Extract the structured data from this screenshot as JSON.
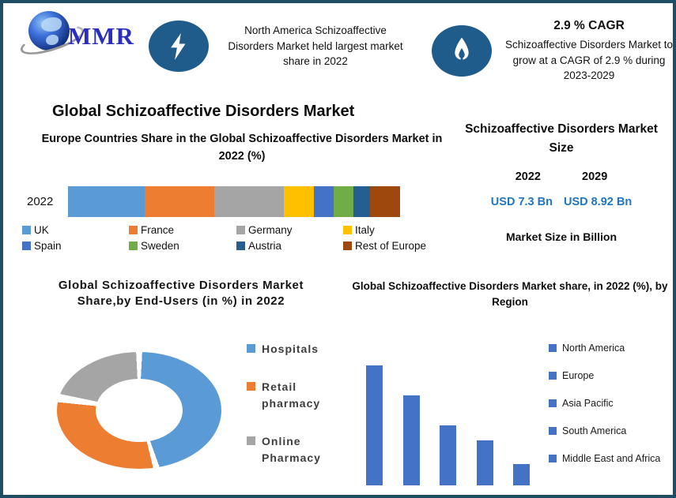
{
  "page": {
    "border_color": "#1d4e66",
    "background": "#ffffff"
  },
  "logo": {
    "text": "MMR",
    "text_color": "#2b2fc0",
    "globe_icon": "globe-with-swoosh"
  },
  "callouts": [
    {
      "icon": "lightning-bolt-icon",
      "icon_bg": "#1f5c8c",
      "text": "North America Schizoaffective Disorders Market held largest market share in 2022"
    },
    {
      "icon": "flame-icon",
      "icon_bg": "#1f5c8c",
      "title": "2.9 % CAGR",
      "text": "Schizoaffective Disorders Market to grow at a CAGR of 2.9 % during 2023-2029"
    }
  ],
  "main_title": "Global Schizoaffective Disorders Market",
  "market_size_panel": {
    "title": "Schizoaffective Disorders Market Size",
    "year_left": "2022",
    "year_right": "2029",
    "value_left": "USD 7.3 Bn",
    "value_right": "USD 8.92 Bn",
    "value_color": "#2076c1",
    "note": "Market Size in Billion"
  },
  "chart_data": [
    {
      "type": "bar",
      "subtype": "stacked-horizontal",
      "title": "Europe Countries Share in the Global Schizoaffective Disorders Market in 2022 (%)",
      "categories": [
        "2022"
      ],
      "series": [
        {
          "name": "UK",
          "value": 23,
          "color": "#5B9BD5"
        },
        {
          "name": "France",
          "value": 21,
          "color": "#ED7D31"
        },
        {
          "name": "Germany",
          "value": 21,
          "color": "#A5A5A5"
        },
        {
          "name": "Italy",
          "value": 9,
          "color": "#FFC000"
        },
        {
          "name": "Spain",
          "value": 6,
          "color": "#4472C4"
        },
        {
          "name": "Sweden",
          "value": 6,
          "color": "#70AD47"
        },
        {
          "name": "Austria",
          "value": 5,
          "color": "#255E91"
        },
        {
          "name": "Rest of Europe",
          "value": 9,
          "color": "#9E480E"
        }
      ],
      "xlim": [
        0,
        100
      ],
      "grid": false,
      "legend_position": "bottom",
      "note": "segment values estimated from widths; no data labels shown"
    },
    {
      "type": "pie",
      "subtype": "donut",
      "title": "Global Schizoaffective Disorders Market Share,by End-Users (in %) in 2022",
      "slices": [
        {
          "name": "Hospitals",
          "value": 46,
          "color": "#5B9BD5"
        },
        {
          "name": "Retail pharmacy",
          "value": 32,
          "color": "#ED7D31"
        },
        {
          "name": "Online Pharmacy",
          "value": 22,
          "color": "#A5A5A5"
        }
      ],
      "legend_position": "right",
      "note": "slice values estimated from arc angles; no data labels shown"
    },
    {
      "type": "bar",
      "title": "Global Schizoaffective Disorders Market share, in 2022 (%), by Region",
      "categories": [
        "North America",
        "Europe",
        "Asia Pacific",
        "South America",
        "Middle East and Africa"
      ],
      "values": [
        40,
        30,
        20,
        15,
        7
      ],
      "bar_color": "#4472C4",
      "grid": false,
      "legend_position": "right",
      "note": "values estimated from bar heights; no axis or data labels shown"
    }
  ]
}
